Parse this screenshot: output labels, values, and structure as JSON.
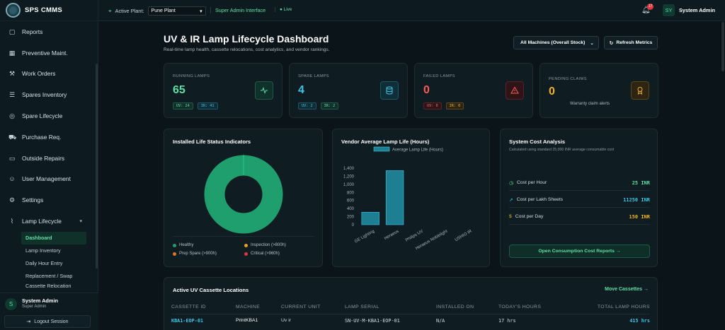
{
  "brand": {
    "name": "SPS CMMS"
  },
  "topbar": {
    "plant_label": "Active Plant:",
    "plant_value": "Pune Plant",
    "role": "Super Admin Interface",
    "live": "● Live",
    "notifications": "17",
    "user_initials": "SY",
    "user_name": "System Admin"
  },
  "sidebar": {
    "items": [
      {
        "label": "Reports",
        "icon": "file-icon"
      },
      {
        "label": "Preventive Maint.",
        "icon": "calendar-icon"
      },
      {
        "label": "Work Orders",
        "icon": "wrench-icon"
      },
      {
        "label": "Spares Inventory",
        "icon": "database-icon"
      },
      {
        "label": "Spare Lifecycle",
        "icon": "compass-icon"
      },
      {
        "label": "Purchase Req.",
        "icon": "cart-icon"
      },
      {
        "label": "Outside Repairs",
        "icon": "truck-icon"
      },
      {
        "label": "User Management",
        "icon": "user-icon"
      },
      {
        "label": "Settings",
        "icon": "gear-icon"
      }
    ],
    "group": {
      "label": "Lamp Lifecycle",
      "icon": "lamp-icon"
    },
    "subitems": [
      "Dashboard",
      "Lamp Inventory",
      "Daily Hour Entry",
      "Replacement / Swap",
      "Cassette Relocation"
    ],
    "user": {
      "initials": "S",
      "name": "System Admin",
      "role": "Super Admin"
    },
    "logout": "Logout Session"
  },
  "header": {
    "title": "UV & IR Lamp Lifecycle Dashboard",
    "subtitle": "Real-time lamp health, cassette relocations, cost analytics, and vendor rankings.",
    "machine_filter": "All Machines (Overall Stock)",
    "refresh": "Refresh Metrics"
  },
  "kpis": {
    "running": {
      "label": "RUNNING LAMPS",
      "value": "65",
      "uv": "UV: 24",
      "ir": "IR: 41",
      "color": "#5ee0a4"
    },
    "spare": {
      "label": "SPARE LAMPS",
      "value": "4",
      "uv": "UV: 2",
      "ir": "IR: 2",
      "color": "#39c6e6"
    },
    "failed": {
      "label": "FAILED LAMPS",
      "value": "0",
      "uv": "UV: 0",
      "ir": "IR: 0",
      "color": "#ff5b5b"
    },
    "pending": {
      "label": "PENDING CLAIMS",
      "value": "0",
      "sub": "Warranty claim alerts",
      "color": "#f0b429"
    }
  },
  "status_panel": {
    "title": "Installed Life Status Indicators",
    "legend": [
      {
        "label": "Healthy",
        "color": "#1f9e6e"
      },
      {
        "label": "Inspection (>800h)",
        "color": "#e8a317"
      },
      {
        "label": "Prep Spare (>900h)",
        "color": "#e8742c"
      },
      {
        "label": "Critical (>960h)",
        "color": "#e0353b"
      }
    ]
  },
  "chart_data": {
    "type": "bar",
    "title": "Vendor Average Lamp Life (Hours)",
    "series": [
      {
        "name": "Average Lamp Life (Hours)",
        "values": [
          310,
          1340,
          0,
          0,
          0
        ]
      }
    ],
    "categories": [
      "GE Lighting",
      "Heraeus",
      "Philips UV",
      "Heraeus Noblelight",
      "USHIO IR"
    ],
    "yticks": [
      "1,400",
      "1,200",
      "1,000",
      "800",
      "600",
      "400",
      "200",
      "0"
    ],
    "ylim": [
      0,
      1400
    ],
    "color": "#1f7f92"
  },
  "cost_panel": {
    "title": "System Cost Analysis",
    "subtitle": "Calculated using standard 25,000 INR average consumable cost",
    "rows": [
      {
        "label": "Cost per Hour",
        "value": "25 INR",
        "color": "#5ee0a4",
        "icon": "clock-icon"
      },
      {
        "label": "Cost per Lakh Sheets",
        "value": "11250 INR",
        "color": "#39c6e6",
        "icon": "trend-icon"
      },
      {
        "label": "Cost per Day",
        "value": "150 INR",
        "color": "#f0b429",
        "icon": "dollar-icon"
      }
    ],
    "button": "Open Consumption Cost Reports →"
  },
  "cassettes": {
    "title": "Active UV Cassette Locations",
    "action": "Move Cassettes →",
    "columns": [
      "CASSETTE ID",
      "MACHINE",
      "CURRENT UNIT",
      "LAMP SERIAL",
      "INSTALLED ON",
      "TODAY'S HOURS",
      "TOTAL LAMP HOURS"
    ],
    "rows": [
      {
        "id": "KBA1-EOP-01",
        "machine": "PrintKBA1",
        "unit": "Uv ir",
        "serial": "SN-UV-M-KBA1-EOP-01",
        "installed": "N/A",
        "today": "17 hrs",
        "total": "415 hrs"
      }
    ]
  }
}
